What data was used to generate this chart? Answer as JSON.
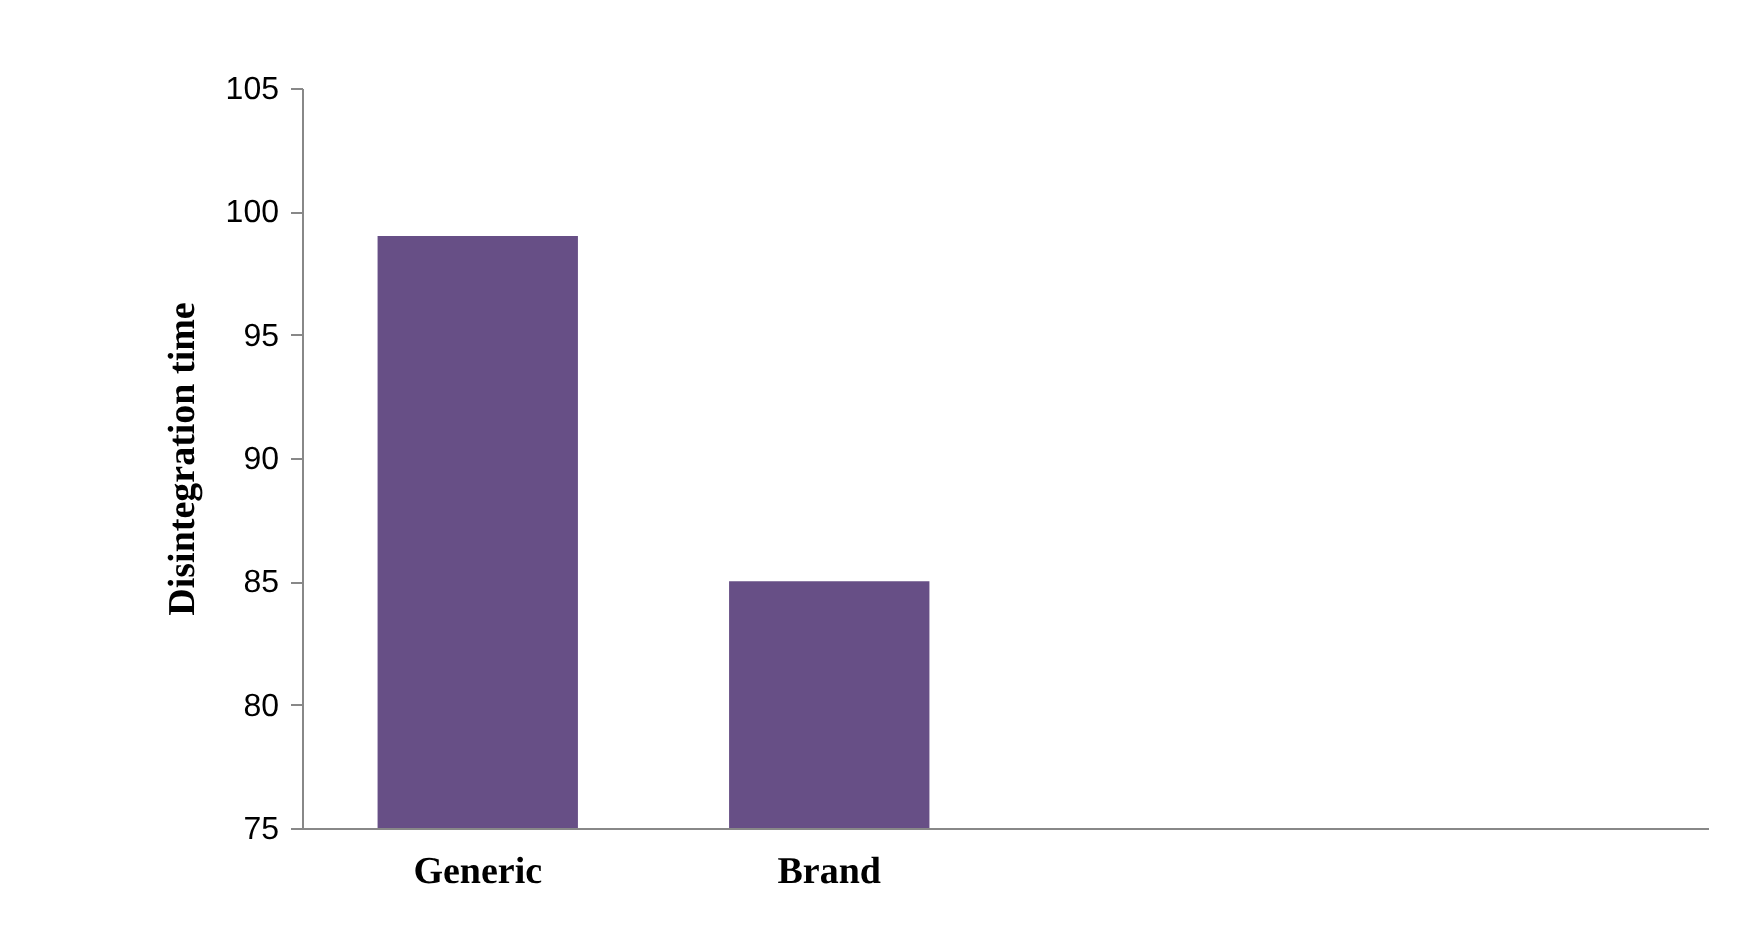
{
  "chart_data": {
    "type": "bar",
    "ylabel": "Disintegration time",
    "categories": [
      "Generic",
      "Brand",
      null,
      null
    ],
    "values": [
      99,
      85,
      null,
      null
    ],
    "color": "#674f86",
    "ylim": [
      75,
      105
    ],
    "yticks": [
      75,
      80,
      85,
      90,
      95,
      100,
      105
    ],
    "grid": false
  }
}
